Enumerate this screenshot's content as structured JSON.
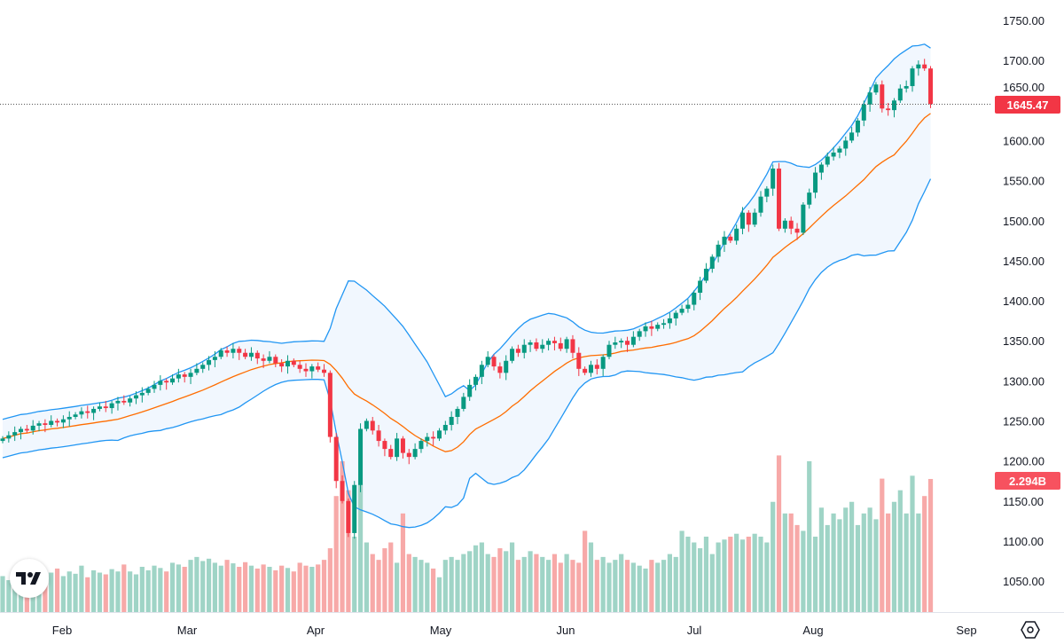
{
  "chart_data": {
    "type": "candlestick",
    "title": "",
    "indicators": [
      "Bollinger Bands (20, 2)",
      "Volume"
    ],
    "y_ticks": [
      "1750.00",
      "1700.00",
      "1650.00",
      "1600.00",
      "1550.00",
      "1500.00",
      "1450.00",
      "1400.00",
      "1350.00",
      "1300.00",
      "1250.00",
      "1200.00",
      "1150.00",
      "1100.00",
      "1050.00"
    ],
    "ylim": [
      1010,
      1775
    ],
    "x_ticks": [
      "Feb",
      "Mar",
      "Apr",
      "May",
      "Jun",
      "Jul",
      "Aug",
      "Sep"
    ],
    "last_price": "1645.47",
    "last_volume": "2.294B",
    "close": [
      1228,
      1232,
      1236,
      1240,
      1238,
      1244,
      1247,
      1245,
      1250,
      1248,
      1252,
      1255,
      1258,
      1262,
      1260,
      1265,
      1268,
      1266,
      1272,
      1275,
      1273,
      1278,
      1282,
      1285,
      1290,
      1295,
      1300,
      1298,
      1303,
      1308,
      1305,
      1310,
      1315,
      1320,
      1326,
      1330,
      1338,
      1335,
      1340,
      1335,
      1330,
      1335,
      1328,
      1325,
      1330,
      1322,
      1318,
      1325,
      1320,
      1315,
      1312,
      1318,
      1314,
      1310,
      1230,
      1175,
      1150,
      1110,
      1170,
      1240,
      1250,
      1238,
      1225,
      1215,
      1205,
      1228,
      1210,
      1205,
      1215,
      1225,
      1230,
      1228,
      1238,
      1245,
      1255,
      1265,
      1280,
      1295,
      1305,
      1320,
      1330,
      1318,
      1310,
      1325,
      1340,
      1335,
      1345,
      1348,
      1340,
      1345,
      1350,
      1347,
      1340,
      1352,
      1335,
      1315,
      1310,
      1320,
      1315,
      1330,
      1345,
      1348,
      1350,
      1345,
      1355,
      1362,
      1368,
      1365,
      1370,
      1372,
      1378,
      1385,
      1390,
      1395,
      1410,
      1425,
      1440,
      1455,
      1470,
      1480,
      1475,
      1490,
      1510,
      1495,
      1510,
      1530,
      1540,
      1565,
      1490,
      1500,
      1490,
      1485,
      1520,
      1535,
      1560,
      1570,
      1580,
      1585,
      1590,
      1600,
      1610,
      1625,
      1645,
      1660,
      1670,
      1640,
      1638,
      1650,
      1665,
      1668,
      1690,
      1695,
      1690,
      1645.47
    ],
    "volume_billions": [
      0.62,
      0.55,
      0.7,
      0.6,
      0.65,
      0.58,
      0.72,
      0.6,
      0.68,
      0.75,
      0.62,
      0.7,
      0.66,
      0.8,
      0.6,
      0.72,
      0.68,
      0.65,
      0.74,
      0.7,
      0.82,
      0.7,
      0.65,
      0.78,
      0.72,
      0.8,
      0.76,
      0.7,
      0.85,
      0.82,
      0.78,
      0.9,
      0.95,
      0.88,
      0.92,
      0.85,
      0.8,
      0.9,
      0.84,
      0.78,
      0.86,
      0.8,
      0.75,
      0.82,
      0.78,
      0.72,
      0.8,
      0.76,
      0.7,
      0.85,
      0.8,
      0.78,
      0.82,
      0.9,
      1.1,
      2.0,
      2.6,
      2.1,
      1.3,
      2.2,
      1.2,
      1.0,
      0.9,
      1.1,
      1.2,
      0.85,
      1.7,
      1.0,
      0.95,
      0.9,
      0.85,
      0.75,
      0.6,
      0.9,
      0.95,
      0.9,
      1.0,
      1.05,
      1.15,
      1.2,
      1.0,
      0.95,
      1.1,
      1.05,
      1.2,
      0.9,
      0.95,
      1.05,
      1.0,
      0.95,
      0.9,
      1.0,
      0.85,
      1.0,
      0.9,
      0.85,
      1.4,
      1.2,
      0.9,
      0.95,
      0.85,
      0.9,
      1.0,
      0.9,
      0.85,
      0.8,
      0.75,
      0.9,
      0.85,
      0.9,
      1.0,
      0.95,
      1.4,
      1.3,
      1.2,
      1.1,
      1.3,
      1.0,
      1.2,
      1.25,
      1.3,
      1.35,
      1.25,
      1.3,
      1.35,
      1.3,
      1.2,
      1.9,
      2.7,
      1.7,
      1.7,
      1.5,
      1.4,
      2.6,
      1.3,
      1.8,
      1.5,
      1.7,
      1.6,
      1.8,
      1.9,
      1.5,
      1.7,
      1.8,
      1.6,
      2.3,
      1.7,
      1.9,
      2.1,
      1.7,
      2.35,
      1.7,
      2.0,
      2.294
    ],
    "colors": {
      "up": "#089981",
      "down": "#f23645",
      "vol_up": "#9fd4c6",
      "vol_down": "#f7a9a8",
      "band": "#2196f3",
      "basis": "#ff6d00",
      "band_fill": "#f1f7fe"
    }
  }
}
